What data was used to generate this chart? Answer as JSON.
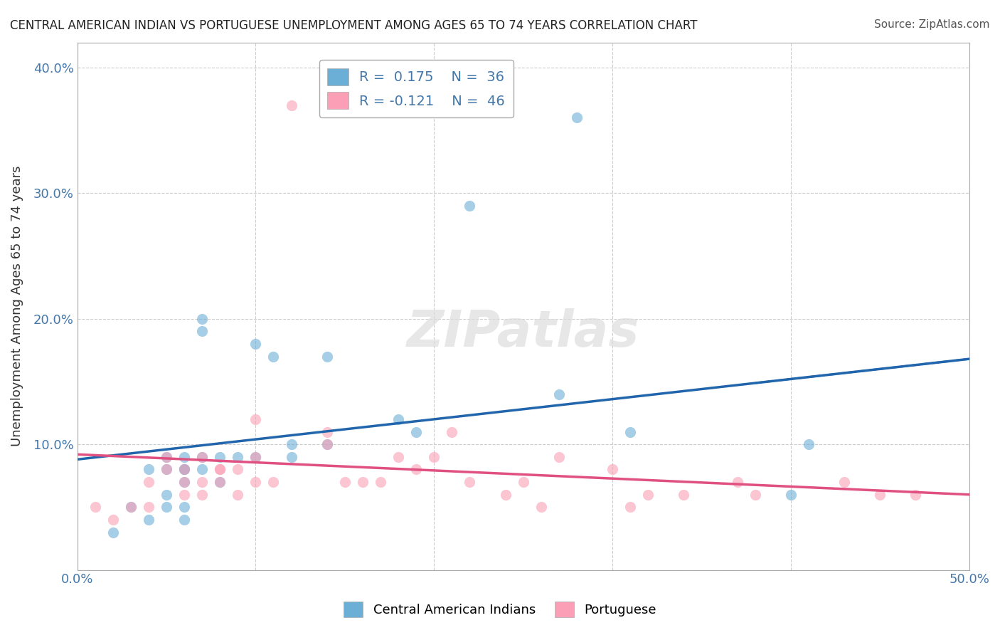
{
  "title": "CENTRAL AMERICAN INDIAN VS PORTUGUESE UNEMPLOYMENT AMONG AGES 65 TO 74 YEARS CORRELATION CHART",
  "source": "Source: ZipAtlas.com",
  "ylabel": "Unemployment Among Ages 65 to 74 years",
  "xlim": [
    0.0,
    0.5
  ],
  "ylim": [
    0.0,
    0.42
  ],
  "x_ticks": [
    0.0,
    0.1,
    0.2,
    0.3,
    0.4,
    0.5
  ],
  "x_tick_labels": [
    "0.0%",
    "",
    "",
    "",
    "",
    "50.0%"
  ],
  "y_ticks": [
    0.0,
    0.1,
    0.2,
    0.3,
    0.4
  ],
  "y_tick_labels": [
    "",
    "10.0%",
    "20.0%",
    "30.0%",
    "40.0%"
  ],
  "legend_r_blue": "R =  0.175",
  "legend_n_blue": "N =  36",
  "legend_r_pink": "R = -0.121",
  "legend_n_pink": "N =  46",
  "blue_color": "#6baed6",
  "pink_color": "#fa9fb5",
  "blue_line_color": "#2166ac",
  "pink_line_color": "#e05080",
  "watermark": "ZIPatlas",
  "blue_scatter_x": [
    0.02,
    0.03,
    0.04,
    0.04,
    0.05,
    0.05,
    0.05,
    0.05,
    0.06,
    0.06,
    0.06,
    0.06,
    0.06,
    0.06,
    0.07,
    0.07,
    0.07,
    0.07,
    0.08,
    0.08,
    0.09,
    0.1,
    0.1,
    0.11,
    0.12,
    0.12,
    0.14,
    0.14,
    0.18,
    0.19,
    0.22,
    0.27,
    0.28,
    0.31,
    0.4,
    0.41
  ],
  "blue_scatter_y": [
    0.03,
    0.05,
    0.04,
    0.08,
    0.05,
    0.06,
    0.08,
    0.09,
    0.04,
    0.05,
    0.07,
    0.08,
    0.08,
    0.09,
    0.08,
    0.09,
    0.19,
    0.2,
    0.07,
    0.09,
    0.09,
    0.09,
    0.18,
    0.17,
    0.09,
    0.1,
    0.1,
    0.17,
    0.12,
    0.11,
    0.29,
    0.14,
    0.36,
    0.11,
    0.06,
    0.1
  ],
  "pink_scatter_x": [
    0.01,
    0.02,
    0.03,
    0.04,
    0.04,
    0.05,
    0.05,
    0.06,
    0.06,
    0.06,
    0.07,
    0.07,
    0.07,
    0.08,
    0.08,
    0.08,
    0.09,
    0.09,
    0.1,
    0.1,
    0.1,
    0.11,
    0.12,
    0.14,
    0.14,
    0.15,
    0.16,
    0.17,
    0.18,
    0.19,
    0.2,
    0.21,
    0.22,
    0.24,
    0.25,
    0.26,
    0.27,
    0.3,
    0.31,
    0.32,
    0.34,
    0.37,
    0.38,
    0.43,
    0.45,
    0.47
  ],
  "pink_scatter_y": [
    0.05,
    0.04,
    0.05,
    0.07,
    0.05,
    0.08,
    0.09,
    0.06,
    0.07,
    0.08,
    0.06,
    0.07,
    0.09,
    0.07,
    0.08,
    0.08,
    0.06,
    0.08,
    0.07,
    0.09,
    0.12,
    0.07,
    0.37,
    0.1,
    0.11,
    0.07,
    0.07,
    0.07,
    0.09,
    0.08,
    0.09,
    0.11,
    0.07,
    0.06,
    0.07,
    0.05,
    0.09,
    0.08,
    0.05,
    0.06,
    0.06,
    0.07,
    0.06,
    0.07,
    0.06,
    0.06
  ],
  "blue_trend_x": [
    0.0,
    0.5
  ],
  "blue_trend_y_start": 0.088,
  "blue_trend_y_end": 0.168,
  "pink_trend_x": [
    0.0,
    0.5
  ],
  "pink_trend_y_start": 0.092,
  "pink_trend_y_end": 0.06
}
